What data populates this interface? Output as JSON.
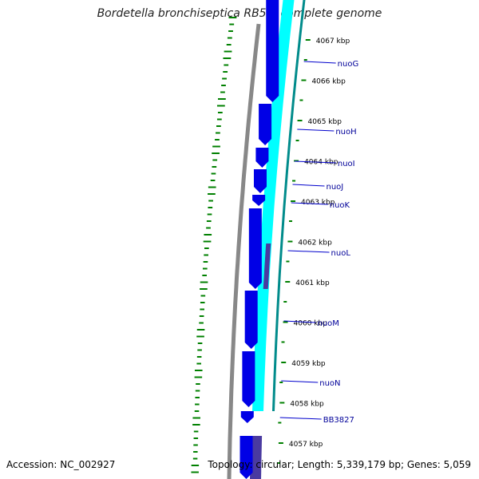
{
  "title": "Bordetella bronchiseptica RB50, complete genome",
  "footer": {
    "accession": "Accession: NC_002927",
    "summary": "Topology: circular; Length: 5,339,179 bp; Genes: 5,059"
  },
  "colors": {
    "forward_gene": "#0000e6",
    "reverse_gene": "#00ffff",
    "dark_gene": "#4a3aa0",
    "backbone": "#888888",
    "gc_track": "#008000",
    "tick": "#008000",
    "label_line": "#0000cc",
    "label_text": "#000099"
  },
  "ticks": [
    {
      "label": "4067 kbp"
    },
    {
      "label": "4066 kbp"
    },
    {
      "label": "4065 kbp"
    },
    {
      "label": "4064 kbp"
    },
    {
      "label": "4063 kbp"
    },
    {
      "label": "4062 kbp"
    },
    {
      "label": "4061 kbp"
    },
    {
      "label": "4060 kbp"
    },
    {
      "label": "4059 kbp"
    },
    {
      "label": "4058 kbp"
    },
    {
      "label": "4057 kbp"
    }
  ],
  "genes": [
    {
      "name": "nuoG"
    },
    {
      "name": "nuoH"
    },
    {
      "name": "nuoI"
    },
    {
      "name": "nuoJ"
    },
    {
      "name": "nuoK"
    },
    {
      "name": "nuoL"
    },
    {
      "name": "nuoM"
    },
    {
      "name": "nuoN"
    },
    {
      "name": "BB3827"
    }
  ]
}
